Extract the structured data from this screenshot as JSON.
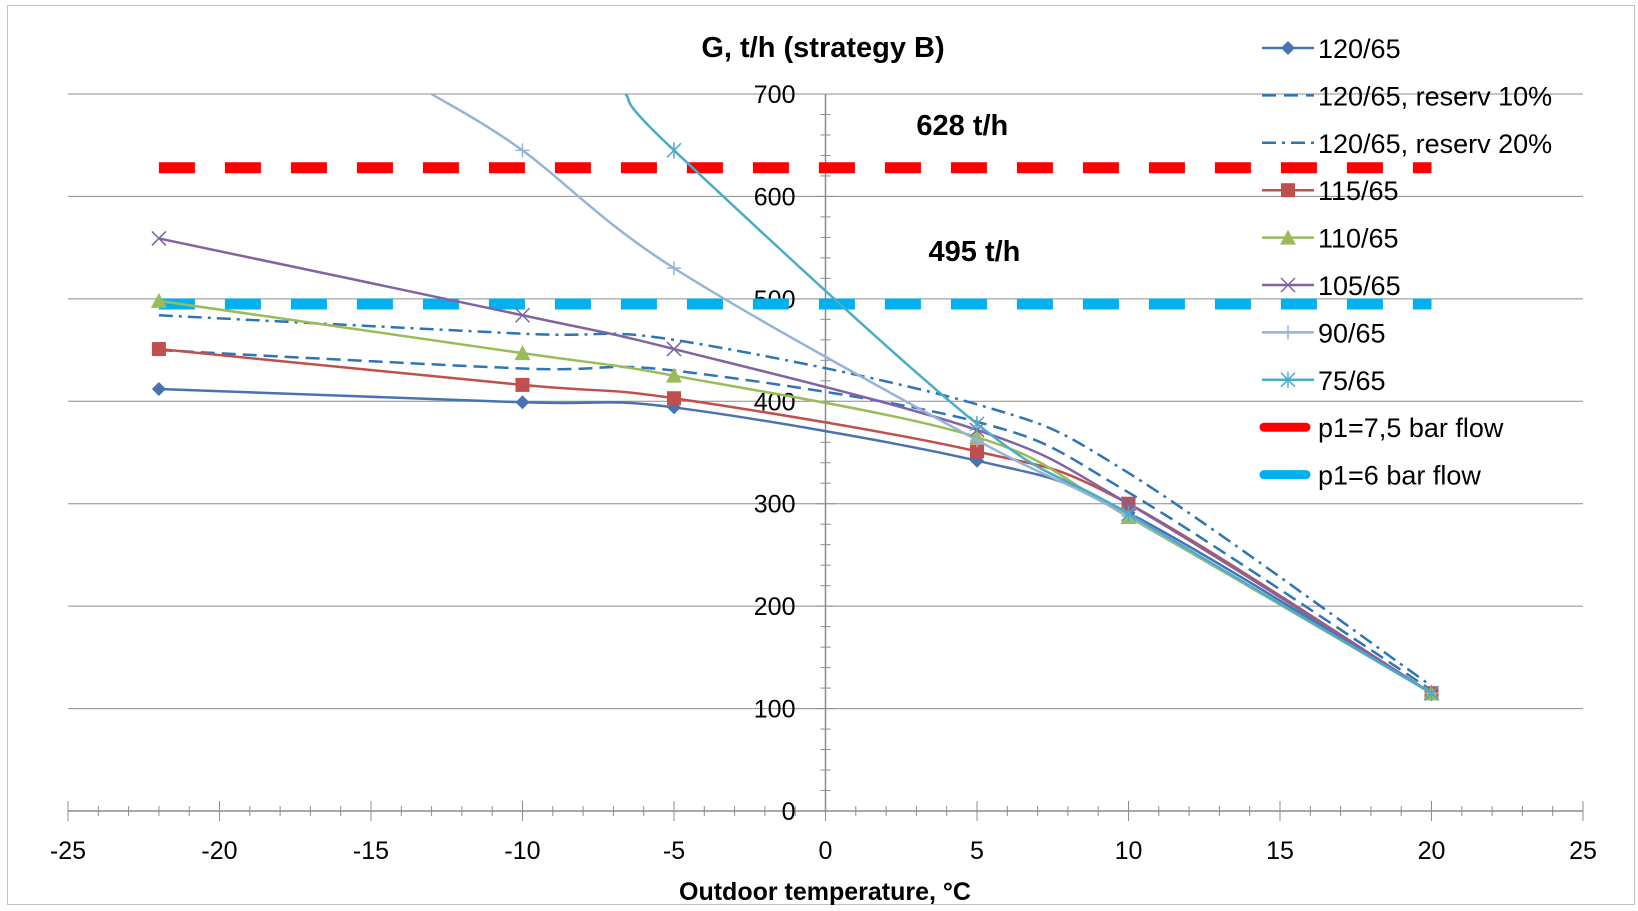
{
  "chart_data": {
    "type": "line",
    "title": "G, t/h (strategy B)",
    "xlabel": "Outdoor temperature, °C",
    "ylabel": "",
    "xlim": [
      -25,
      25
    ],
    "ylim": [
      0,
      700
    ],
    "x_ticks": [
      -25,
      -20,
      -15,
      -10,
      -5,
      0,
      5,
      10,
      15,
      20,
      25
    ],
    "y_ticks": [
      0,
      100,
      200,
      300,
      400,
      500,
      600,
      700
    ],
    "grid": "horizontal major gridlines",
    "legend_position": "right",
    "series": [
      {
        "name": "120/65",
        "color": "#4a72b0",
        "dash": "solid",
        "marker": "diamond",
        "points": [
          [
            -22,
            412
          ],
          [
            -10,
            399
          ],
          [
            -5,
            394
          ],
          [
            5,
            342
          ],
          [
            10,
            291
          ],
          [
            20,
            115
          ]
        ]
      },
      {
        "name": "120/65, reserv 10%",
        "color": "#2e75b6",
        "dash": "dashed",
        "marker": "none",
        "points": [
          [
            -22,
            450
          ],
          [
            -10,
            432
          ],
          [
            -5,
            430
          ],
          [
            5,
            380
          ],
          [
            10,
            311
          ],
          [
            20,
            118
          ]
        ]
      },
      {
        "name": "120/65, reserv 20%",
        "color": "#2e75b6",
        "dash": "dashdot",
        "marker": "none",
        "points": [
          [
            -22,
            484
          ],
          [
            -10,
            466
          ],
          [
            -5,
            460
          ],
          [
            5,
            397
          ],
          [
            10,
            330
          ],
          [
            20,
            122
          ]
        ]
      },
      {
        "name": "115/65",
        "color": "#c0504d",
        "dash": "solid",
        "marker": "square",
        "points": [
          [
            -22,
            451
          ],
          [
            -10,
            416
          ],
          [
            -5,
            403
          ],
          [
            5,
            351
          ],
          [
            10,
            300
          ],
          [
            20,
            115
          ]
        ]
      },
      {
        "name": "110/65",
        "color": "#9bbb59",
        "dash": "solid",
        "marker": "triangle",
        "points": [
          [
            -22,
            498
          ],
          [
            -10,
            447
          ],
          [
            -5,
            425
          ],
          [
            5,
            365
          ],
          [
            10,
            287
          ],
          [
            20,
            115
          ]
        ]
      },
      {
        "name": "105/65",
        "color": "#8064a2",
        "dash": "solid",
        "marker": "x",
        "points": [
          [
            -22,
            559
          ],
          [
            -10,
            484
          ],
          [
            -5,
            451
          ],
          [
            5,
            372
          ],
          [
            10,
            300
          ],
          [
            20,
            115
          ]
        ]
      },
      {
        "name": "90/65",
        "color": "#95b3d7",
        "dash": "solid",
        "marker": "plus",
        "points": [
          [
            -13,
            700
          ],
          [
            -10,
            645
          ],
          [
            -5,
            530
          ],
          [
            5,
            362
          ],
          [
            10,
            288
          ],
          [
            20,
            115
          ]
        ]
      },
      {
        "name": "75/65",
        "color": "#4bacc6",
        "dash": "solid",
        "marker": "star",
        "points": [
          [
            -6.6,
            700
          ],
          [
            -5,
            645
          ],
          [
            5,
            378
          ],
          [
            10,
            290
          ],
          [
            20,
            115
          ]
        ]
      },
      {
        "name": "p1=7,5 bar flow",
        "color": "#ff0000",
        "dash": "bold-dashed",
        "marker": "none",
        "points": [
          [
            -22,
            628
          ],
          [
            20,
            628
          ]
        ]
      },
      {
        "name": "p1=6 bar flow",
        "color": "#00b0f0",
        "dash": "bold-dashed",
        "marker": "none",
        "points": [
          [
            -22,
            495
          ],
          [
            20,
            495
          ]
        ]
      }
    ],
    "annotations": [
      {
        "text": "628 t/h",
        "x": 3,
        "y": 660
      },
      {
        "text": "495 t/h",
        "x": 3.4,
        "y": 537
      }
    ]
  }
}
